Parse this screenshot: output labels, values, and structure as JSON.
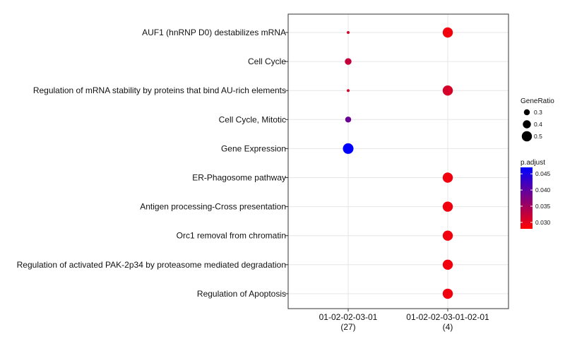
{
  "chart_data": {
    "type": "scatter",
    "title": "",
    "xlabel": "",
    "ylabel": "",
    "x_categories": [
      {
        "label": "01-02-02-03-01",
        "count": "(27)"
      },
      {
        "label": "01-02-02-03-01-02-01",
        "count": "(4)"
      }
    ],
    "y_categories": [
      "AUF1 (hnRNP D0) destabilizes mRNA",
      "Cell Cycle",
      "Regulation of mRNA stability by proteins that bind AU-rich elements",
      "Cell Cycle, Mitotic",
      "Gene Expression",
      "ER-Phagosome pathway",
      "Antigen processing-Cross presentation",
      "Orc1 removal from chromatin",
      "Regulation of activated PAK-2p34 by proteasome mediated degradation",
      "Regulation of Apoptosis"
    ],
    "points": [
      {
        "x": "01-02-02-03-01",
        "y": "AUF1 (hnRNP D0) destabilizes mRNA",
        "GeneRatio": 0.15,
        "p_adjust": 0.031
      },
      {
        "x": "01-02-02-03-01",
        "y": "Cell Cycle",
        "GeneRatio": 0.33,
        "p_adjust": 0.0325
      },
      {
        "x": "01-02-02-03-01",
        "y": "Regulation of mRNA stability by proteins that bind AU-rich elements",
        "GeneRatio": 0.15,
        "p_adjust": 0.031
      },
      {
        "x": "01-02-02-03-01",
        "y": "Cell Cycle, Mitotic",
        "GeneRatio": 0.3,
        "p_adjust": 0.039
      },
      {
        "x": "01-02-02-03-01",
        "y": "Gene Expression",
        "GeneRatio": 0.52,
        "p_adjust": 0.048
      },
      {
        "x": "01-02-02-03-01-02-01",
        "y": "AUF1 (hnRNP D0) destabilizes mRNA",
        "GeneRatio": 0.5,
        "p_adjust": 0.029
      },
      {
        "x": "01-02-02-03-01-02-01",
        "y": "Regulation of mRNA stability by proteins that bind AU-rich elements",
        "GeneRatio": 0.5,
        "p_adjust": 0.031
      },
      {
        "x": "01-02-02-03-01-02-01",
        "y": "ER-Phagosome pathway",
        "GeneRatio": 0.5,
        "p_adjust": 0.029
      },
      {
        "x": "01-02-02-03-01-02-01",
        "y": "Antigen processing-Cross presentation",
        "GeneRatio": 0.5,
        "p_adjust": 0.029
      },
      {
        "x": "01-02-02-03-01-02-01",
        "y": "Orc1 removal from chromatin",
        "GeneRatio": 0.5,
        "p_adjust": 0.029
      },
      {
        "x": "01-02-02-03-01-02-01",
        "y": "Regulation of activated PAK-2p34 by proteasome mediated degradation",
        "GeneRatio": 0.5,
        "p_adjust": 0.029
      },
      {
        "x": "01-02-02-03-01-02-01",
        "y": "Regulation of Apoptosis",
        "GeneRatio": 0.5,
        "p_adjust": 0.029
      }
    ],
    "size_legend": {
      "title": "GeneRatio",
      "values": [
        0.3,
        0.4,
        0.5
      ],
      "labels": [
        "0.3",
        "0.4",
        "0.5"
      ]
    },
    "color_legend": {
      "title": "p.adjust",
      "range": [
        0.028,
        0.047
      ],
      "ticks": [
        0.045,
        0.04,
        0.035,
        0.03
      ],
      "tick_labels": [
        "0.045",
        "0.040",
        "0.035",
        "0.030"
      ],
      "low_color": "#ff0000",
      "high_color": "#0000ff"
    },
    "grid": true,
    "legend_position": "right"
  }
}
